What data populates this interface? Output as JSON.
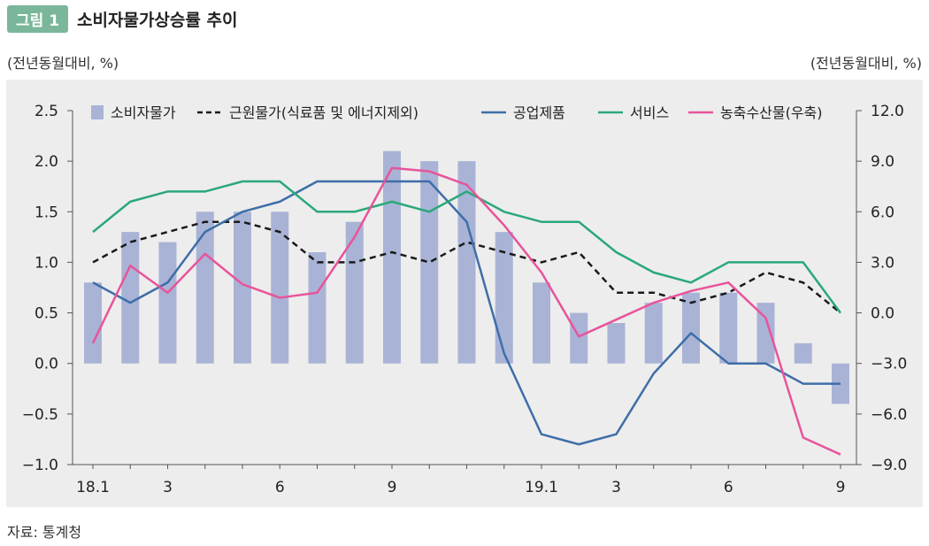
{
  "figure": {
    "badge": "그림 1",
    "title": "소비자물가상승률 추이",
    "left_unit": "(전년동월대비, %)",
    "right_unit": "(전년동월대비, %)",
    "source": "자료: 통계청"
  },
  "colors": {
    "background": "#ededed",
    "bar": "#a9b3d6",
    "core": "#1a1a1a",
    "industrial": "#3e6ea8",
    "services": "#2aa87a",
    "agri": "#e8549a",
    "badge": "#7ab79a"
  },
  "chart_data": {
    "type": "bar+line",
    "legend_position": "top",
    "grid": false,
    "x": [
      "18.1",
      "18.2",
      "18.3",
      "18.4",
      "18.5",
      "18.6",
      "18.7",
      "18.8",
      "18.9",
      "18.10",
      "18.11",
      "18.12",
      "19.1",
      "19.2",
      "19.3",
      "19.4",
      "19.5",
      "19.6",
      "19.7",
      "19.8",
      "19.9"
    ],
    "x_tick_labels": [
      "18.1",
      "",
      "3",
      "",
      "",
      "6",
      "",
      "",
      "9",
      "",
      "",
      "",
      "19.1",
      "",
      "3",
      "",
      "",
      "6",
      "",
      "",
      "9"
    ],
    "y_left": {
      "ylim": [
        -1.0,
        2.5
      ],
      "ticks": [
        "2.5",
        "2.0",
        "1.5",
        "1.0",
        "0.5",
        "0.0",
        "−0.5",
        "−1.0"
      ]
    },
    "y_right": {
      "ylim": [
        -9.0,
        12.0
      ],
      "ticks": [
        "12.0",
        "9.0",
        "6.0",
        "3.0",
        "0.0",
        "−3.0",
        "−6.0",
        "−9.0"
      ]
    },
    "series": [
      {
        "name": "소비자물가",
        "type": "bar",
        "axis": "left",
        "values": [
          0.8,
          1.3,
          1.2,
          1.5,
          1.5,
          1.5,
          1.1,
          1.4,
          2.1,
          2.0,
          2.0,
          1.3,
          0.8,
          0.5,
          0.4,
          0.6,
          0.7,
          0.7,
          0.6,
          0.2,
          -0.4
        ]
      },
      {
        "name": "근원물가(식료품 및 에너지제외)",
        "type": "line",
        "dashed": true,
        "axis": "left",
        "values": [
          1.0,
          1.2,
          1.3,
          1.4,
          1.4,
          1.3,
          1.0,
          1.0,
          1.1,
          1.0,
          1.2,
          1.1,
          1.0,
          1.1,
          0.7,
          0.7,
          0.6,
          0.7,
          0.9,
          0.8,
          0.5
        ]
      },
      {
        "name": "공업제품",
        "type": "line",
        "axis": "left",
        "values": [
          0.8,
          0.6,
          0.8,
          1.3,
          1.5,
          1.6,
          1.8,
          1.8,
          1.8,
          1.8,
          1.4,
          0.1,
          -0.7,
          -0.8,
          -0.7,
          -0.1,
          0.3,
          0.0,
          0.0,
          -0.2,
          -0.2
        ]
      },
      {
        "name": "서비스",
        "type": "line",
        "axis": "left",
        "values": [
          1.3,
          1.6,
          1.7,
          1.7,
          1.8,
          1.8,
          1.5,
          1.5,
          1.6,
          1.5,
          1.7,
          1.5,
          1.4,
          1.4,
          1.1,
          0.9,
          0.8,
          1.0,
          1.0,
          1.0,
          0.5
        ]
      },
      {
        "name": "농축수산물(우축)",
        "type": "line",
        "axis": "right",
        "values": [
          -1.8,
          2.8,
          1.2,
          3.5,
          1.7,
          0.9,
          1.2,
          4.5,
          8.6,
          8.4,
          7.6,
          5.2,
          2.4,
          -1.4,
          -0.4,
          0.6,
          1.3,
          1.8,
          -0.3,
          -7.4,
          -8.4
        ]
      }
    ]
  }
}
